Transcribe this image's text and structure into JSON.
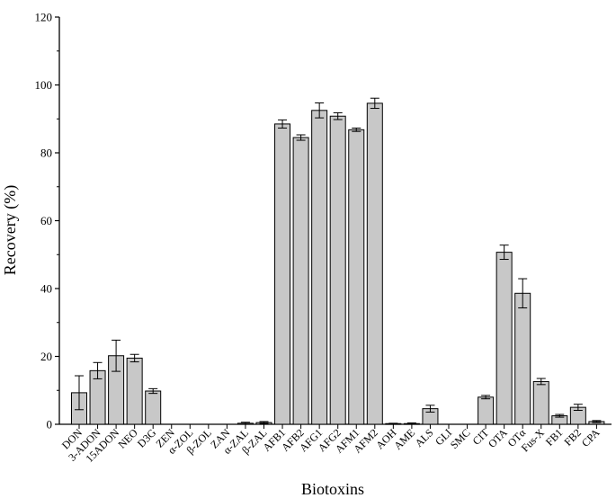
{
  "chart_data": {
    "type": "bar",
    "xlabel": "Biotoxins",
    "ylabel": "Recovery (%)",
    "ylim": [
      0,
      120
    ],
    "yticks": [
      0,
      20,
      40,
      60,
      80,
      100,
      120
    ],
    "grid": false,
    "bar_color": "#c8c8c8",
    "edge_color": "#000000",
    "categories": [
      "DON",
      "3-ADON",
      "15ADON",
      "NEO",
      "D3G",
      "ZEN",
      "α-ZOL",
      "β-ZOL",
      "ZAN",
      "α-ZAL",
      "β-ZAL",
      "AFB1",
      "AFB2",
      "AFG1",
      "AFG2",
      "AFM1",
      "AFM2",
      "AOH",
      "AME",
      "ALS",
      "GLI",
      "SMC",
      "CIT",
      "OTA",
      "OTα",
      "Fus-X",
      "FB1",
      "FB2",
      "CPA"
    ],
    "values": [
      9.3,
      15.8,
      20.2,
      19.5,
      9.8,
      0,
      0,
      0,
      0,
      0.3,
      0.5,
      88.5,
      84.5,
      92.5,
      90.8,
      86.8,
      94.6,
      0.2,
      0.2,
      4.6,
      0,
      0,
      8.0,
      50.7,
      38.6,
      12.6,
      2.5,
      5.0,
      0.8
    ],
    "errors": [
      5.0,
      2.4,
      4.6,
      1.1,
      0.7,
      0,
      0,
      0,
      0,
      0.3,
      0.3,
      1.2,
      0.8,
      2.2,
      1.0,
      0.5,
      1.5,
      0.1,
      0.2,
      1.0,
      0,
      0,
      0.5,
      2.1,
      4.3,
      0.9,
      0.4,
      0.9,
      0.3
    ]
  }
}
